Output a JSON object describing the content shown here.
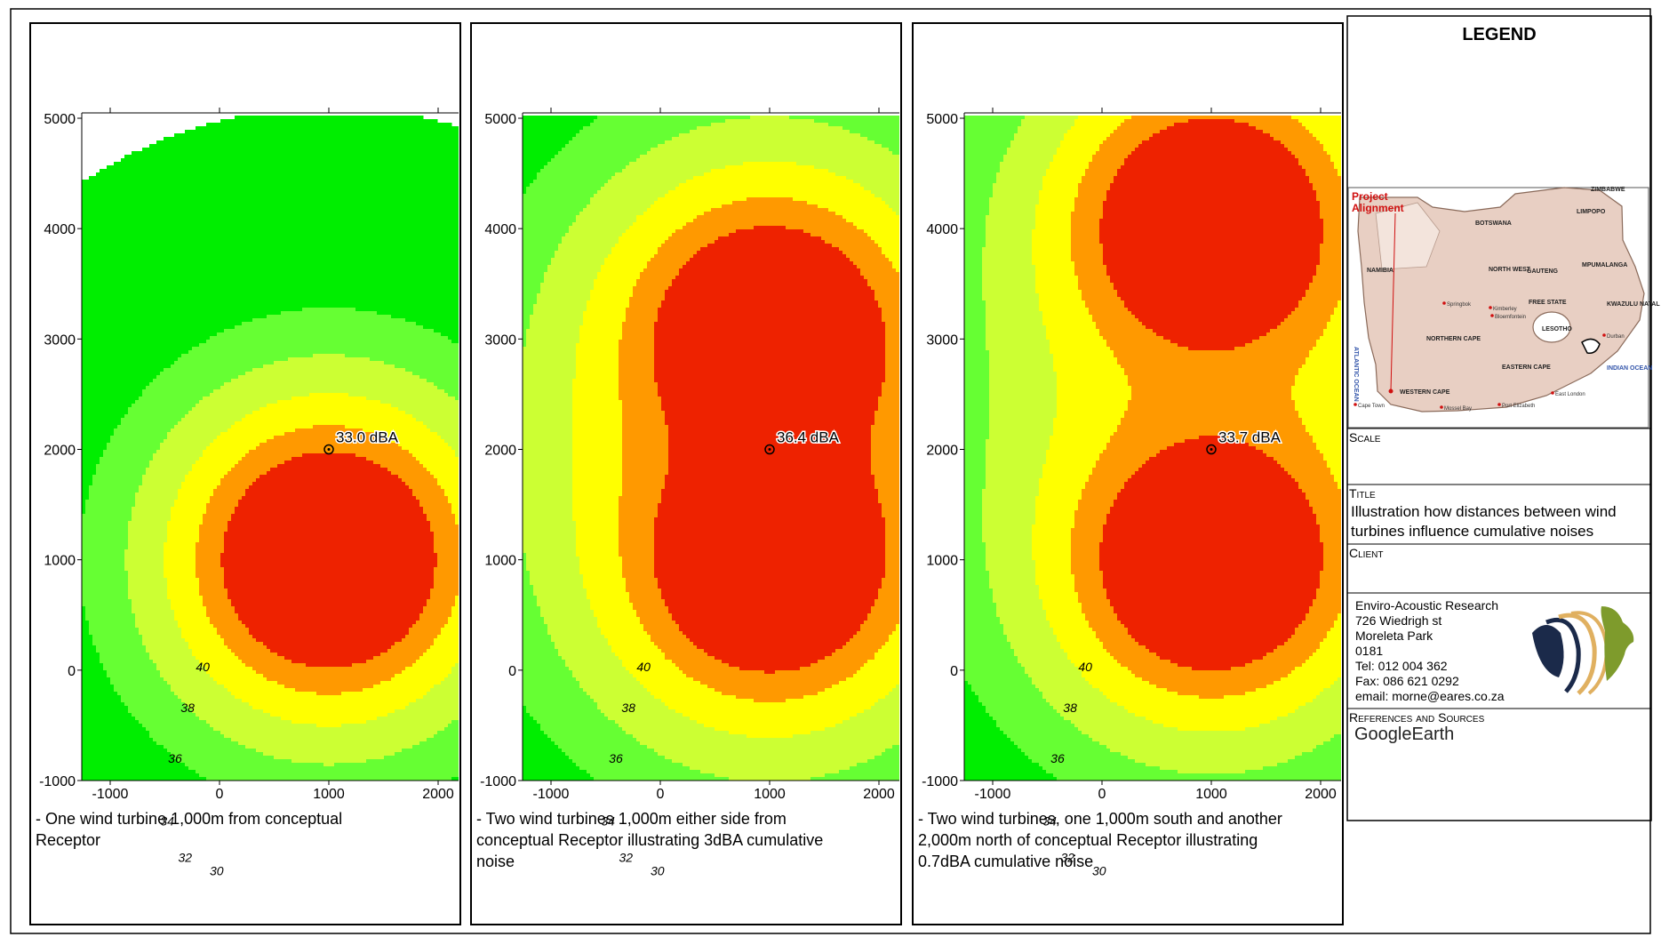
{
  "panels": [
    {
      "caption": "- One wind turbine 1,000m from conceptual\nReceptor",
      "receptor_label": "33.0 dBA",
      "turbines": [
        [
          1000,
          1000
        ]
      ],
      "contour_labels": [
        "30",
        "32",
        "34",
        "36",
        "38",
        "40"
      ]
    },
    {
      "caption": "- Two wind turbines 1,000m either side from\nconceptual Receptor illustrating 3dBA cumulative\nnoise",
      "receptor_label": "36.4 dBA",
      "turbines": [
        [
          1000,
          1000
        ],
        [
          1000,
          3000
        ]
      ],
      "contour_labels": [
        "30",
        "32",
        "34",
        "36",
        "38",
        "40"
      ]
    },
    {
      "caption": "- Two wind turbines, one 1,000m south and another\n2,000m north of conceptual Receptor illustrating\n0.7dBA cumulative noise",
      "receptor_label": "33.7 dBA",
      "turbines": [
        [
          1000,
          1000
        ],
        [
          1000,
          4000
        ]
      ],
      "contour_labels": [
        "30",
        "32",
        "34",
        "36",
        "38",
        "40"
      ]
    }
  ],
  "axes": {
    "x_ticks": [
      "-1000",
      "0",
      "1000",
      "2000"
    ],
    "y_ticks": [
      "5000",
      "4000",
      "3000",
      "2000",
      "1000",
      "0",
      "-1000"
    ],
    "receptor": [
      1000,
      2000
    ]
  },
  "legend": {
    "title": "LEGEND",
    "map": {
      "project_label": "Project\nAlignment",
      "regions": [
        "NAMIBIA",
        "BOTSWANA",
        "LIMPOPO",
        "NORTH WEST",
        "GAUTENG",
        "MPUMALANGA",
        "FREE STATE",
        "KWAZULU NATAL",
        "LESOTHO",
        "NORTHERN CAPE",
        "EASTERN CAPE",
        "WESTERN CAPE",
        "ATLANTIC OCEAN",
        "INDIAN OCEAN",
        "ZIMBABWE"
      ],
      "cities": [
        "Cape Town",
        "Mossel Bay",
        "Port Elizabeth",
        "East London",
        "Durban",
        "Springbok",
        "Kimberley",
        "Bloemfontein"
      ]
    },
    "scale_label": "Scale",
    "title_label": "Title",
    "title_text": "Illustration how distances between wind\nturbines influence cumulative noises",
    "client_label": "Client",
    "client_lines": [
      "Enviro-Acoustic Research",
      "726 Wiedrigh st",
      "Moreleta Park",
      "0181",
      "Tel: 012 004 362",
      "Fax: 086 621 0292",
      "email: morne@eares.co.za"
    ],
    "refs_label": "References and Sources",
    "refs_text": "GoogleEarth"
  },
  "colors": {
    "outer_green": "#00ee00",
    "light_green": "#66ff33",
    "yellow_green": "#ccff33",
    "yellow": "#ffff00",
    "orange": "#ff9900",
    "red": "#ee2200",
    "map_land": "#e8cfc3",
    "map_sea": "#ffffff"
  }
}
